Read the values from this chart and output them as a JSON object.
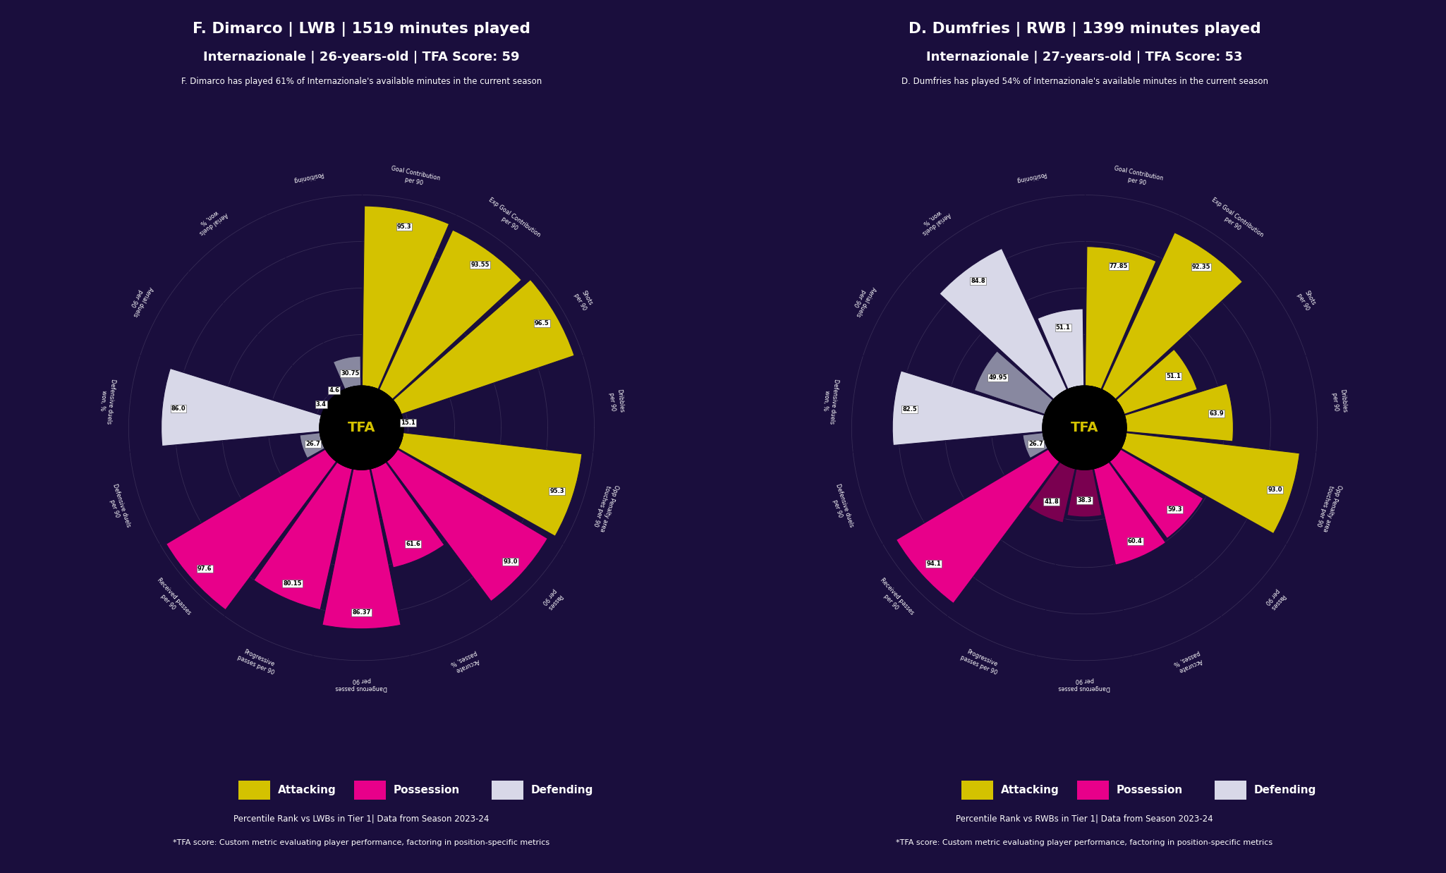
{
  "background_color": "#1a0e3d",
  "players": [
    {
      "name": "F. Dimarco",
      "position": "LWB",
      "minutes": 1519,
      "club": "Internazionale",
      "age": 26,
      "tfa_score": 59,
      "minutes_pct": 61,
      "compare_group": "LWBs",
      "subtitle": "F. Dimarco has played 61% of Internazionale's available minutes in the current season",
      "metrics": [
        {
          "label": "Goal Contribution\nper 90",
          "value": 95.3,
          "category": "attacking"
        },
        {
          "label": "Exp Goal Contribution\nper 90",
          "value": 93.55,
          "category": "attacking"
        },
        {
          "label": "Shots\nper 90",
          "value": 96.5,
          "category": "attacking"
        },
        {
          "label": "Dribbles\nper 90",
          "value": 15.1,
          "category": "attacking"
        },
        {
          "label": "Opp Penalty area\ntouches per 90",
          "value": 95.3,
          "category": "attacking"
        },
        {
          "label": "Passes\nper 90",
          "value": 93.0,
          "category": "possession"
        },
        {
          "label": "Accurate\npasses, %",
          "value": 61.6,
          "category": "possession"
        },
        {
          "label": "Dangerous passes\nper 90",
          "value": 86.37,
          "category": "possession"
        },
        {
          "label": "Progressive\npasses per 90",
          "value": 80.15,
          "category": "possession"
        },
        {
          "label": "Received passes\nper 90",
          "value": 97.6,
          "category": "possession"
        },
        {
          "label": "Defensive duels\nper 90",
          "value": 26.7,
          "category": "defending"
        },
        {
          "label": "Defensive duels\nwon, %",
          "value": 86.0,
          "category": "defending"
        },
        {
          "label": "Aerial duels\nper 90",
          "value": 3.4,
          "category": "defending"
        },
        {
          "label": "Aerial duels\nwon, %",
          "value": 4.6,
          "category": "defending"
        },
        {
          "label": "Positioning",
          "value": 30.75,
          "category": "defending"
        }
      ]
    },
    {
      "name": "D. Dumfries",
      "position": "RWB",
      "minutes": 1399,
      "club": "Internazionale",
      "age": 27,
      "tfa_score": 53,
      "minutes_pct": 54,
      "compare_group": "RWBs",
      "subtitle": "D. Dumfries has played 54% of Internazionale's available minutes in the current season",
      "metrics": [
        {
          "label": "Goal Contribution\nper 90",
          "value": 77.85,
          "category": "attacking"
        },
        {
          "label": "Exp Goal Contribution\nper 90",
          "value": 92.35,
          "category": "attacking"
        },
        {
          "label": "Shots\nper 90",
          "value": 51.1,
          "category": "attacking"
        },
        {
          "label": "Dribbles\nper 90",
          "value": 63.9,
          "category": "attacking"
        },
        {
          "label": "Opp Penalty area\ntouches per 90",
          "value": 93.0,
          "category": "attacking"
        },
        {
          "label": "Passes\nper 90",
          "value": 59.3,
          "category": "possession"
        },
        {
          "label": "Accurate\npasses, %",
          "value": 60.4,
          "category": "possession"
        },
        {
          "label": "Dangerous passes\nper 90",
          "value": 38.3,
          "category": "possession"
        },
        {
          "label": "Progressive\npasses per 90",
          "value": 41.8,
          "category": "possession"
        },
        {
          "label": "Received passes\nper 90",
          "value": 94.1,
          "category": "possession"
        },
        {
          "label": "Defensive duels\nper 90",
          "value": 26.7,
          "category": "defending"
        },
        {
          "label": "Defensive duels\nwon, %",
          "value": 82.5,
          "category": "defending"
        },
        {
          "label": "Aerial duels\nper 90",
          "value": 49.95,
          "category": "defending"
        },
        {
          "label": "Aerial duels\nwon, %",
          "value": 84.8,
          "category": "defending"
        },
        {
          "label": "Positioning",
          "value": 51.1,
          "category": "defending"
        }
      ]
    }
  ],
  "category_colors": {
    "attacking_high": "#d4c200",
    "attacking_low": "#6b6100",
    "possession_high": "#e8008a",
    "possession_low": "#7a0050",
    "defending_high": "#d8d8e8",
    "defending_low": "#8888a0"
  }
}
